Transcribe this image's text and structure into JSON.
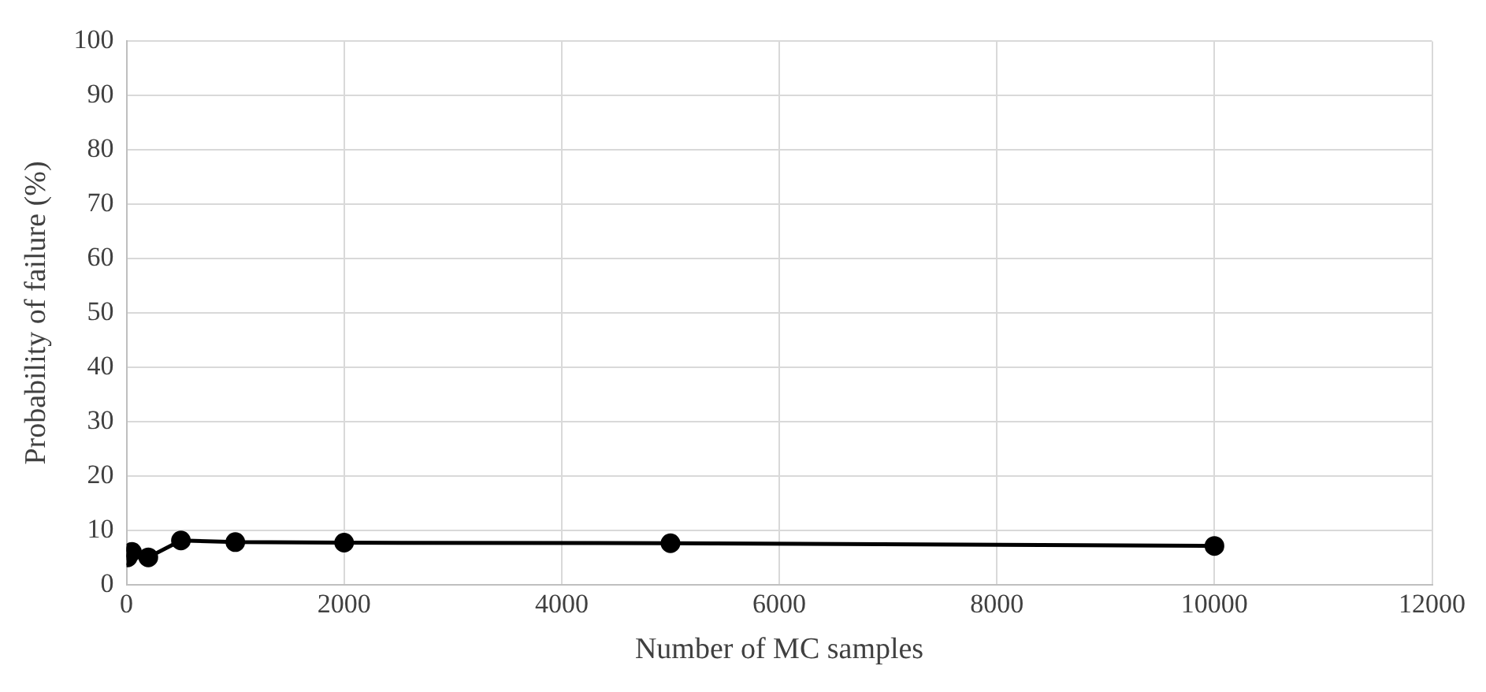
{
  "chart_data": {
    "type": "line",
    "xlabel": "Number of MC samples",
    "ylabel": "Probability of failure (%)",
    "x": [
      10,
      50,
      200,
      500,
      1000,
      2000,
      5000,
      10000
    ],
    "series": [
      {
        "color": "#000000",
        "values": [
          5.0,
          6.0,
          5.0,
          8.1,
          7.8,
          7.7,
          7.6,
          7.1
        ]
      }
    ],
    "xlim": [
      0,
      12000
    ],
    "xticks": [
      0,
      2000,
      4000,
      6000,
      8000,
      10000,
      12000
    ],
    "ylim": [
      0,
      100
    ],
    "yticks": [
      0,
      10,
      20,
      30,
      40,
      50,
      60,
      70,
      80,
      90,
      100
    ],
    "grid": true,
    "legend": false,
    "marker": "circle",
    "line_style": "solid"
  }
}
